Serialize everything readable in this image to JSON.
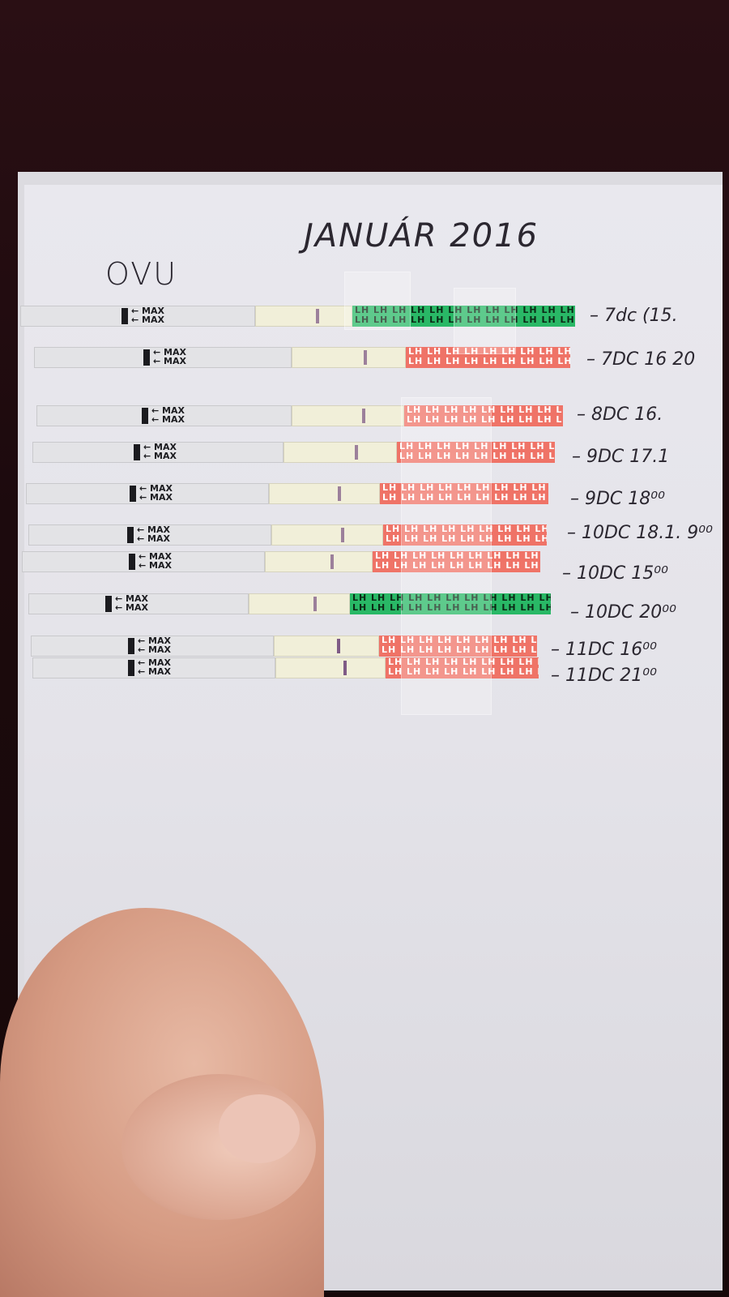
{
  "paper": {
    "title": "JANUÁR 2016",
    "ovu": "OVU"
  },
  "strip_text": {
    "max": "MAX",
    "lh": "LH LH LH LH LH LH LH LH LH LH LH LH"
  },
  "strips": [
    {
      "label": "7dc (15.",
      "color": "green",
      "test_line": "faint"
    },
    {
      "label": "7DC 16 20",
      "color": "pink",
      "test_line": "faint"
    },
    {
      "label": "8DC 16.",
      "color": "pink",
      "test_line": "faint"
    },
    {
      "label": "9DC 17.1",
      "color": "pink",
      "test_line": "faint"
    },
    {
      "label": "9DC 18⁰⁰",
      "color": "pink",
      "test_line": "faint"
    },
    {
      "label": "10DC 18.1. 9⁰⁰",
      "color": "pink",
      "test_line": "faint"
    },
    {
      "label": "10DC 15⁰⁰",
      "color": "pink",
      "test_line": "faint"
    },
    {
      "label": "10DC 20⁰⁰",
      "color": "green",
      "test_line": "faint"
    },
    {
      "label": "11DC 16⁰⁰",
      "color": "pink",
      "test_line": "medium"
    },
    {
      "label": "11DC 21⁰⁰",
      "color": "pink",
      "test_line": "medium"
    }
  ],
  "colors": {
    "pink": "#ef7367",
    "green": "#29b866",
    "paper": "#e6e5eb",
    "background": "#1c0a0d"
  }
}
